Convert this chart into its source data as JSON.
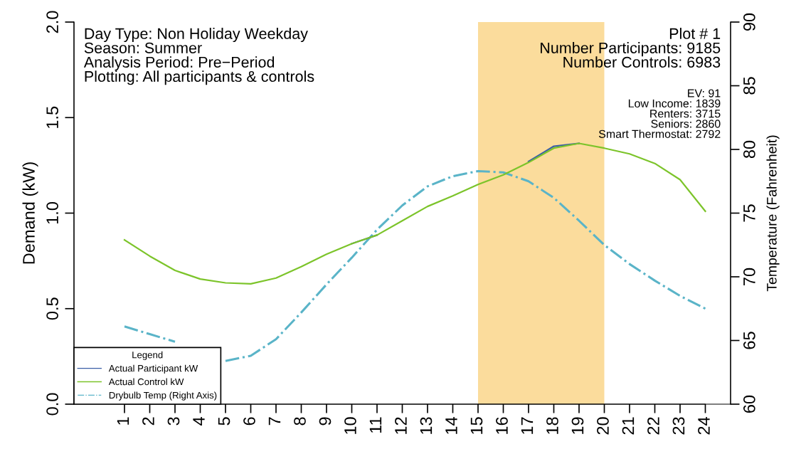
{
  "chart_data": {
    "type": "line",
    "ylabel": "Demand (kW)",
    "y2label": "Temperature (Fahrenheit)",
    "legend_title": "Legend",
    "annotations": [
      "Day Type: Non Holiday Weekday\nSeason: Summer\nAnalysis Period: Pre−Period\nPlotting: All participants & controls",
      "Plot # 1\nNumber Participants: 9185\nNumber Controls: 6983",
      "EV: 91\nLow Income: 1839\nRenters: 3715\nSeniors: 2860\nSmart Thermostat: 2792"
    ],
    "x": [
      1,
      2,
      3,
      4,
      5,
      6,
      7,
      8,
      9,
      10,
      11,
      12,
      13,
      14,
      15,
      16,
      17,
      18,
      19,
      20,
      21,
      22,
      23,
      24
    ],
    "series": [
      {
        "name": "Actual Participant kW",
        "color": "#3b5ea6",
        "line_style": "solid",
        "values": [
          null,
          null,
          null,
          null,
          null,
          null,
          null,
          null,
          null,
          0.84,
          0.885,
          null,
          null,
          null,
          null,
          null,
          1.27,
          1.35,
          1.365,
          null,
          null,
          null,
          null,
          null
        ]
      },
      {
        "name": "Actual Control kW",
        "color": "#7cc42a",
        "line_style": "solid",
        "values": [
          0.86,
          0.775,
          0.7,
          0.655,
          0.635,
          0.63,
          0.66,
          0.72,
          0.785,
          0.84,
          0.885,
          0.96,
          1.035,
          1.09,
          1.15,
          1.2,
          1.265,
          1.34,
          1.365,
          1.34,
          1.31,
          1.26,
          1.175,
          1.01
        ]
      },
      {
        "name": "Drybulb Temp (Right Axis)",
        "color": "#5ab4c8",
        "line_style": "dashdot",
        "axis": "y2",
        "values": [
          66.1,
          65.5,
          64.9,
          null,
          63.4,
          63.8,
          65.1,
          67.2,
          69.4,
          71.5,
          73.7,
          75.6,
          77.1,
          77.9,
          78.3,
          78.2,
          77.5,
          76.2,
          74.4,
          72.5,
          71.0,
          69.7,
          68.5,
          67.5
        ]
      }
    ],
    "xlim": [
      -1,
      25
    ],
    "xticks": [
      1,
      2,
      3,
      4,
      5,
      6,
      7,
      8,
      9,
      10,
      11,
      12,
      13,
      14,
      15,
      16,
      17,
      18,
      19,
      20,
      21,
      22,
      23,
      24
    ],
    "ylim": [
      0,
      2
    ],
    "yticks": [
      {
        "value": 0,
        "label": "0.0"
      },
      {
        "value": 0.5,
        "label": "0.5"
      },
      {
        "value": 1,
        "label": "1.0"
      },
      {
        "value": 1.5,
        "label": "1.5"
      },
      {
        "value": 2,
        "label": "2.0"
      }
    ],
    "y2lim": [
      60,
      90
    ],
    "y2ticks": [
      60,
      65,
      70,
      75,
      80,
      85,
      90
    ],
    "bands": [
      {
        "axis": "x",
        "from": 15,
        "to": 20,
        "color": "#fbdc9c"
      }
    ],
    "grid": false,
    "legend": "bottom left",
    "marker": "none"
  }
}
